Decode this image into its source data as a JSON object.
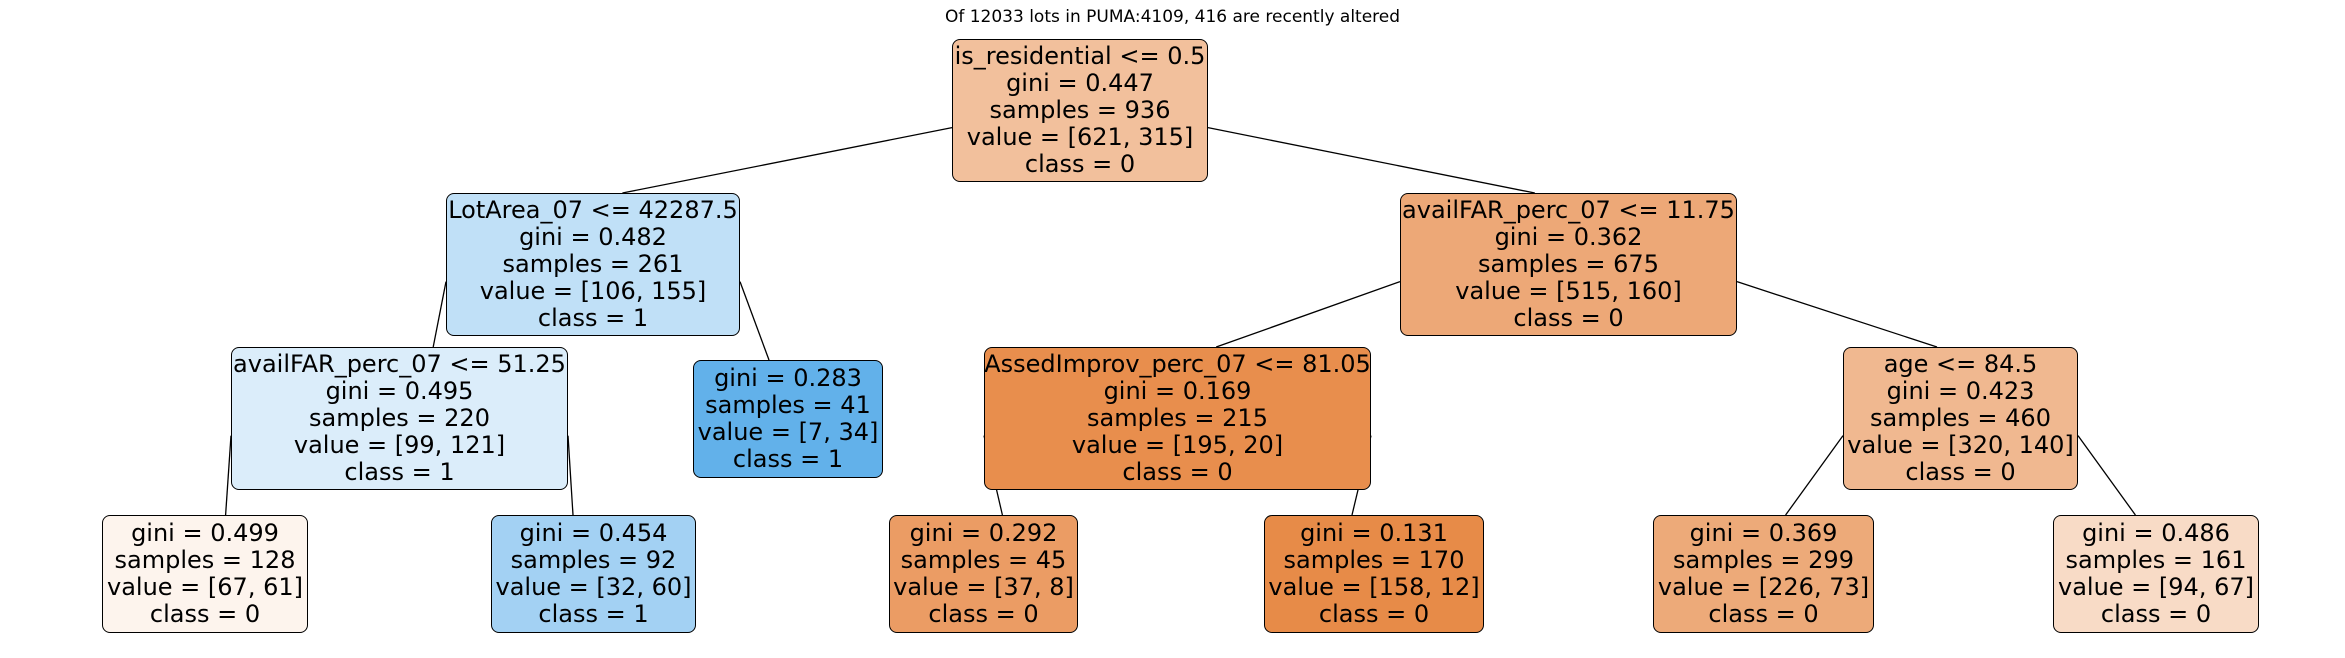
{
  "title": "Of 12033 lots in PUMA:4109, 416 are recently altered",
  "nodes": [
    {
      "id": "n0",
      "lines": [
        "is_residential <= 0.5",
        "gini = 0.447",
        "samples = 936",
        "value = [621, 315]",
        "class = 0"
      ],
      "fill": "#f2c09c"
    },
    {
      "id": "n1",
      "lines": [
        "LotArea_07 <= 42287.5",
        "gini = 0.482",
        "samples = 261",
        "value = [106, 155]",
        "class = 1"
      ],
      "fill": "#c0e0f7"
    },
    {
      "id": "n2",
      "lines": [
        "availFAR_perc_07 <= 51.25",
        "gini = 0.495",
        "samples = 220",
        "value = [99, 121]",
        "class = 1"
      ],
      "fill": "#dbedfa"
    },
    {
      "id": "n3",
      "lines": [
        "gini = 0.499",
        "samples = 128",
        "value = [67, 61]",
        "class = 0"
      ],
      "fill": "#fdf4ed"
    },
    {
      "id": "n4",
      "lines": [
        "gini = 0.454",
        "samples = 92",
        "value = [32, 60]",
        "class = 1"
      ],
      "fill": "#a3d1f3"
    },
    {
      "id": "n5",
      "lines": [
        "gini = 0.283",
        "samples = 41",
        "value = [7, 34]",
        "class = 1"
      ],
      "fill": "#62b1ea"
    },
    {
      "id": "n6",
      "lines": [
        "availFAR_perc_07 <= 11.75",
        "gini = 0.362",
        "samples = 675",
        "value = [515, 160]",
        "class = 0"
      ],
      "fill": "#eda877"
    },
    {
      "id": "n7",
      "lines": [
        "AssedImprov_perc_07 <= 81.05",
        "gini = 0.169",
        "samples = 215",
        "value = [195, 20]",
        "class = 0"
      ],
      "fill": "#e88e4d"
    },
    {
      "id": "n8",
      "lines": [
        "gini = 0.292",
        "samples = 45",
        "value = [37, 8]",
        "class = 0"
      ],
      "fill": "#eb9c64"
    },
    {
      "id": "n9",
      "lines": [
        "gini = 0.131",
        "samples = 170",
        "value = [158, 12]",
        "class = 0"
      ],
      "fill": "#e78b48"
    },
    {
      "id": "n10",
      "lines": [
        "age <= 84.5",
        "gini = 0.423",
        "samples = 460",
        "value = [320, 140]",
        "class = 0"
      ],
      "fill": "#f0b890"
    },
    {
      "id": "n11",
      "lines": [
        "gini = 0.369",
        "samples = 299",
        "value = [226, 73]",
        "class = 0"
      ],
      "fill": "#edaa79"
    },
    {
      "id": "n12",
      "lines": [
        "gini = 0.486",
        "samples = 161",
        "value = [94, 67]",
        "class = 0"
      ],
      "fill": "#f8dbc6"
    }
  ],
  "edges": [
    [
      "n0",
      "n1"
    ],
    [
      "n0",
      "n6"
    ],
    [
      "n1",
      "n2"
    ],
    [
      "n1",
      "n5"
    ],
    [
      "n2",
      "n3"
    ],
    [
      "n2",
      "n4"
    ],
    [
      "n6",
      "n7"
    ],
    [
      "n6",
      "n10"
    ],
    [
      "n7",
      "n8"
    ],
    [
      "n7",
      "n9"
    ],
    [
      "n10",
      "n11"
    ],
    [
      "n10",
      "n12"
    ]
  ]
}
